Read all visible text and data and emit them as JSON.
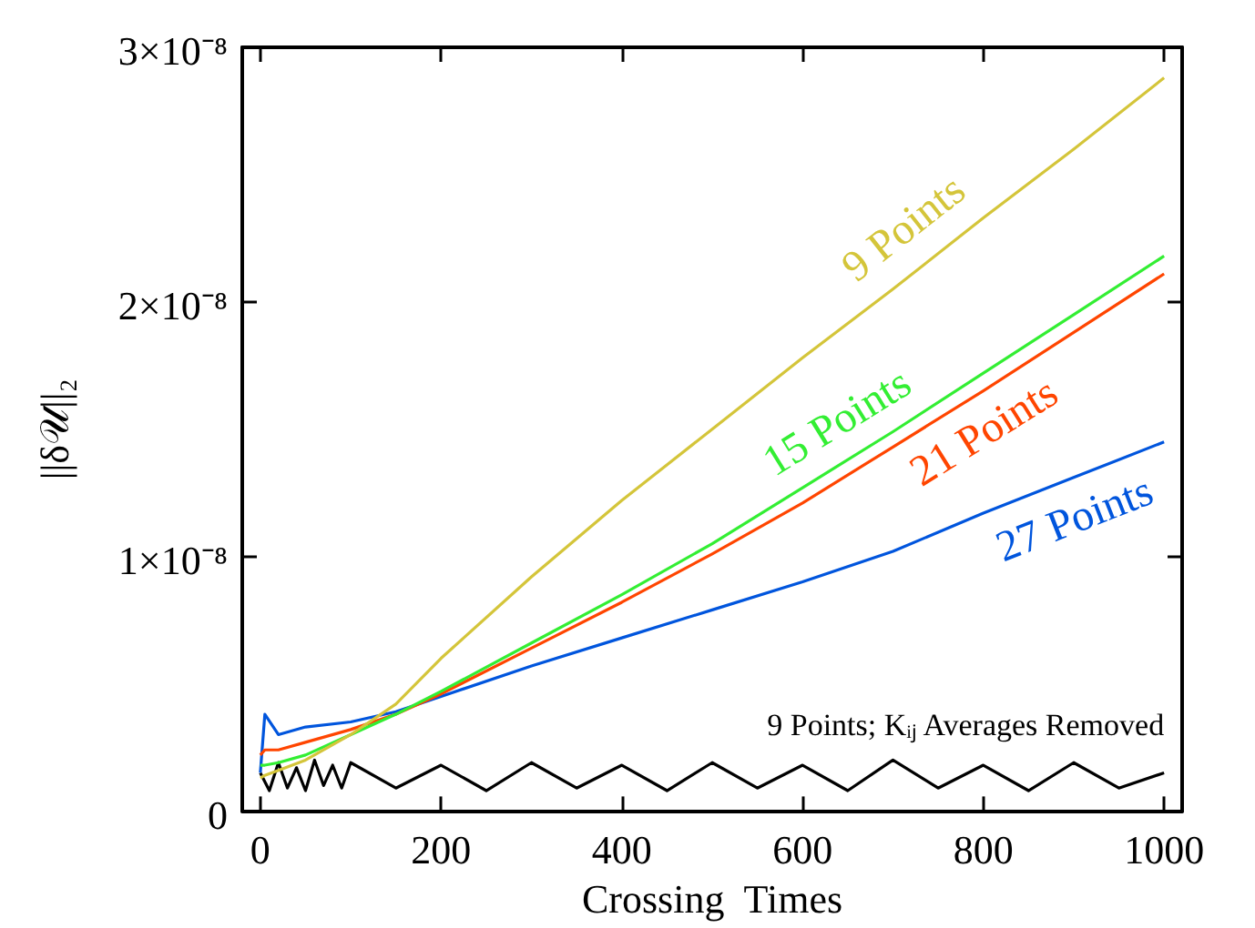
{
  "chart_data": {
    "type": "line",
    "xlabel": "Crossing  Times",
    "ylabel": "||δ𝒰||₂",
    "x": [
      0,
      5,
      20,
      50,
      100,
      150,
      200,
      300,
      400,
      500,
      600,
      700,
      800,
      900,
      1000
    ],
    "series": [
      {
        "name": "9 Points",
        "color": "#d4c53a",
        "values": [
          1.3e-09,
          1.4e-09,
          1.6e-09,
          2e-09,
          3e-09,
          4.2e-09,
          6e-09,
          9.2e-09,
          1.22e-08,
          1.5e-08,
          1.78e-08,
          2.05e-08,
          2.33e-08,
          2.6e-08,
          2.88e-08
        ]
      },
      {
        "name": "15 Points",
        "color": "#33ee33",
        "values": [
          1.8e-09,
          1.8e-09,
          1.9e-09,
          2.2e-09,
          3e-09,
          3.8e-09,
          4.7e-09,
          6.6e-09,
          8.5e-09,
          1.05e-08,
          1.27e-08,
          1.49e-08,
          1.72e-08,
          1.95e-08,
          2.18e-08
        ]
      },
      {
        "name": "21 Points",
        "color": "#ff4500",
        "values": [
          2.2e-09,
          2.4e-09,
          2.4e-09,
          2.7e-09,
          3.2e-09,
          3.8e-09,
          4.6e-09,
          6.4e-09,
          8.2e-09,
          1.01e-08,
          1.21e-08,
          1.43e-08,
          1.65e-08,
          1.88e-08,
          2.11e-08
        ]
      },
      {
        "name": "27 Points",
        "color": "#0055dd",
        "values": [
          1.5e-09,
          3.8e-09,
          3e-09,
          3.3e-09,
          3.5e-09,
          3.9e-09,
          4.5e-09,
          5.7e-09,
          6.8e-09,
          7.9e-09,
          9e-09,
          1.02e-08,
          1.17e-08,
          1.31e-08,
          1.45e-08
        ]
      },
      {
        "name": "9 Points; Kᵢⱼ Averages Removed",
        "color": "#000000",
        "x": [
          0,
          10,
          20,
          30,
          40,
          50,
          60,
          70,
          80,
          90,
          100,
          150,
          200,
          250,
          300,
          350,
          400,
          450,
          500,
          550,
          600,
          650,
          700,
          750,
          800,
          850,
          900,
          950,
          1000
        ],
        "values": [
          1.5e-09,
          8e-10,
          1.9e-09,
          9e-10,
          1.7e-09,
          8e-10,
          2e-09,
          1e-09,
          1.8e-09,
          9e-10,
          1.9e-09,
          9e-10,
          1.8e-09,
          8e-10,
          1.9e-09,
          9e-10,
          1.8e-09,
          8e-10,
          1.9e-09,
          9e-10,
          1.8e-09,
          8e-10,
          2e-09,
          9e-10,
          1.8e-09,
          8e-10,
          1.9e-09,
          9e-10,
          1.5e-09
        ]
      }
    ],
    "xlim": [
      -20,
      1020
    ],
    "xticks": [
      0,
      200,
      400,
      600,
      800,
      1000
    ],
    "ylim": [
      0,
      3e-08
    ],
    "yticks": [
      0,
      {
        "value": 1e-08,
        "label": "1×10⁻⁸"
      },
      {
        "value": 2e-08,
        "label": "2×10⁻⁸"
      },
      {
        "value": 3e-08,
        "label": "3×10⁻⁸"
      }
    ],
    "grid": false,
    "legend": false,
    "marker": "none",
    "line_style": "solid"
  }
}
